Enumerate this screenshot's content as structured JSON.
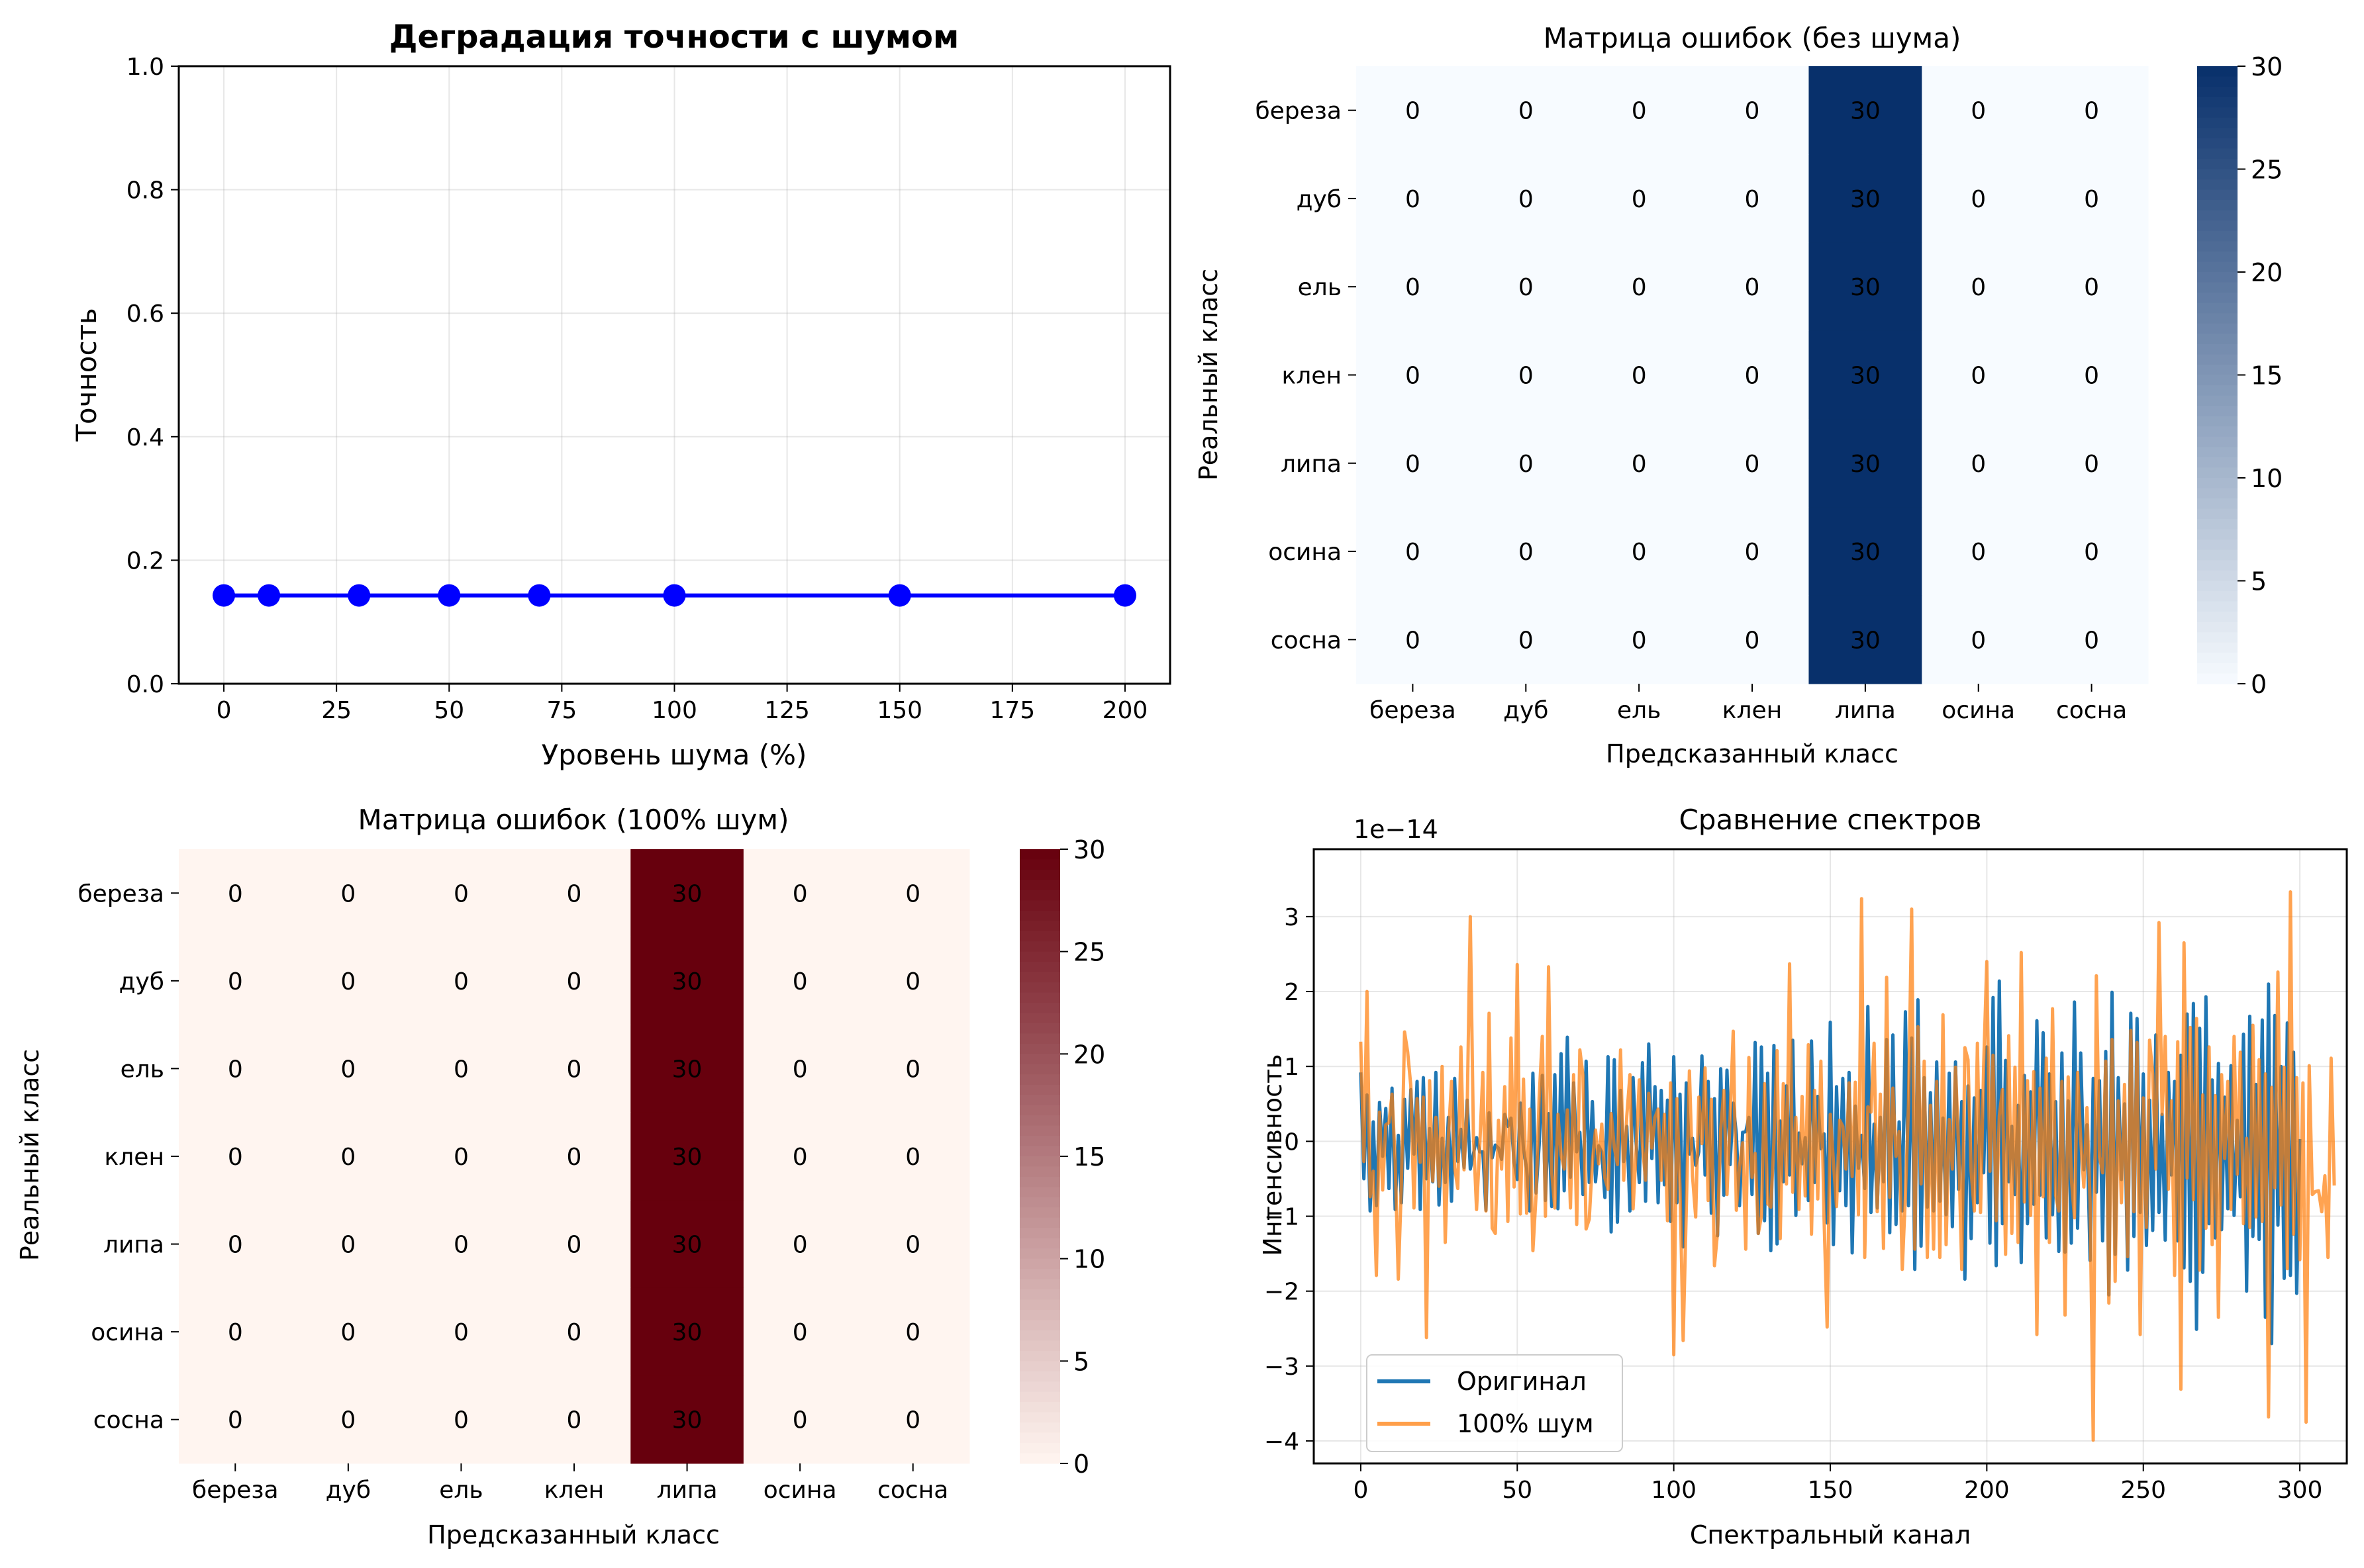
{
  "chart_data": [
    {
      "type": "line",
      "title": "Деградация точности с шумом",
      "xlabel": "Уровень шума (%)",
      "ylabel": "Точность",
      "x": [
        0,
        10,
        30,
        50,
        70,
        100,
        150,
        200
      ],
      "series": [
        {
          "values": [
            0.143,
            0.143,
            0.143,
            0.143,
            0.143,
            0.143,
            0.143,
            0.143
          ],
          "color": "#0000ff"
        }
      ],
      "xlim": [
        -10,
        210
      ],
      "ylim": [
        0,
        1
      ],
      "xticks": [
        0,
        25,
        50,
        75,
        100,
        125,
        150,
        175,
        200
      ],
      "yticks": [
        "0.0",
        "0.2",
        "0.4",
        "0.6",
        "0.8",
        "1.0"
      ],
      "grid": true
    },
    {
      "type": "heatmap",
      "title": "Матрица ошибок (без шума)",
      "xlabel": "Предсказанный класс",
      "ylabel": "Реальный класс",
      "labels": [
        "береза",
        "дуб",
        "ель",
        "клен",
        "липа",
        "осина",
        "сосна"
      ],
      "matrix": [
        [
          0,
          0,
          0,
          0,
          30,
          0,
          0
        ],
        [
          0,
          0,
          0,
          0,
          30,
          0,
          0
        ],
        [
          0,
          0,
          0,
          0,
          30,
          0,
          0
        ],
        [
          0,
          0,
          0,
          0,
          30,
          0,
          0
        ],
        [
          0,
          0,
          0,
          0,
          30,
          0,
          0
        ],
        [
          0,
          0,
          0,
          0,
          30,
          0,
          0
        ],
        [
          0,
          0,
          0,
          0,
          30,
          0,
          0
        ]
      ],
      "colorbar_ticks": [
        0,
        5,
        10,
        15,
        20,
        25,
        30
      ],
      "vmin": 0,
      "vmax": 30,
      "colormap": "Blues",
      "low_color": "#f7fbff",
      "high_color": "#08306b"
    },
    {
      "type": "heatmap",
      "title": "Матрица ошибок (100% шум)",
      "xlabel": "Предсказанный класс",
      "ylabel": "Реальный класс",
      "labels": [
        "береза",
        "дуб",
        "ель",
        "клен",
        "липа",
        "осина",
        "сосна"
      ],
      "matrix": [
        [
          0,
          0,
          0,
          0,
          30,
          0,
          0
        ],
        [
          0,
          0,
          0,
          0,
          30,
          0,
          0
        ],
        [
          0,
          0,
          0,
          0,
          30,
          0,
          0
        ],
        [
          0,
          0,
          0,
          0,
          30,
          0,
          0
        ],
        [
          0,
          0,
          0,
          0,
          30,
          0,
          0
        ],
        [
          0,
          0,
          0,
          0,
          30,
          0,
          0
        ],
        [
          0,
          0,
          0,
          0,
          30,
          0,
          0
        ]
      ],
      "colorbar_ticks": [
        0,
        5,
        10,
        15,
        20,
        25,
        30
      ],
      "vmin": 0,
      "vmax": 30,
      "colormap": "Reds",
      "low_color": "#fff5f0",
      "high_color": "#67000d"
    },
    {
      "type": "line",
      "title": "Сравнение спектров",
      "xlabel": "Спектральный канал",
      "ylabel": "Интенсивность",
      "offset_text": "1e−14",
      "xlim": [
        -15,
        315
      ],
      "ylim": [
        -4.3,
        3.9
      ],
      "xticks": [
        0,
        50,
        100,
        150,
        200,
        250,
        300
      ],
      "yticks": [
        -4,
        -3,
        -2,
        -1,
        0,
        1,
        2,
        3
      ],
      "legend": "lower-left",
      "grid": true,
      "series": [
        {
          "name": "Оригинал",
          "color": "#1f77b4",
          "values": [
            0.92,
            -0.5,
            0.62,
            -0.93,
            0.26,
            -0.86,
            0.52,
            -0.2,
            0.44,
            -0.63,
            0.71,
            -0.91,
            0.08,
            -0.82,
            0.56,
            -0.36,
            0.69,
            -0.17,
            0.8,
            -0.91,
            0.85,
            -0.5,
            0.17,
            -0.54,
            0.92,
            -0.85,
            0.04,
            -0.55,
            0.32,
            -0.8,
            0.84,
            -0.27,
            0.16,
            -0.35,
            0.55,
            -0.37,
            -0.17,
            0.05,
            -0.14,
            -0.14,
            -0.92,
            0.38,
            -0.22,
            -0.05,
            -0.09,
            -0.24,
            0.36,
            0.2,
            0.31,
            -0.28,
            -0.51,
            0.51,
            -0.11,
            -0.36,
            -0.93,
            0.91,
            -0.69,
            -0.05,
            0.88,
            -0.79,
            0.37,
            -0.87,
            0.89,
            -0.9,
            1.17,
            -0.66,
            1.39,
            -0.48,
            0.78,
            -0.14,
            0.12,
            -0.71,
            1.07,
            -0.55,
            0.53,
            -0.54,
            -0.06,
            -0.14,
            -0.75,
            1.13,
            -1.21,
            1.09,
            -1.08,
            0.68,
            -0.27,
            0.2,
            -0.93,
            0.85,
            -0.04,
            -0.55,
            1.05,
            -0.8,
            1.3,
            -0.23,
            0.73,
            -0.82,
            0.68,
            -0.58,
            0.55,
            -1.07,
            1.13,
            -0.82,
            0.63,
            -1.41,
            0.78,
            -0.17,
            0.04,
            -0.32,
            -0.14,
            1.14,
            -0.45,
            0.8,
            -0.96,
            0.57,
            -1.26,
            0.97,
            -0.72,
            0.95,
            -0.31,
            0.51,
            0.09,
            -0.86,
            0.12,
            0.13,
            0.32,
            -0.71,
            1.32,
            -1.23,
            1.26,
            -1.06,
            0.91,
            -1.46,
            1.28,
            -1.37,
            0.27,
            -0.54,
            0.74,
            -0.45,
            1.35,
            -0.99,
            0.11,
            -0.3,
            0.05,
            -0.79,
            1.34,
            -0.55,
            0.6,
            -0.1,
            0.1,
            -1.09,
            1.59,
            -1.38,
            0.73,
            -0.66,
            0.84,
            -0.86,
            0.92,
            -1.49,
            0.47,
            -0.36,
            0.08,
            -0.63,
            1.8,
            -0.95,
            0.23,
            -0.89,
            0.32,
            -0.54,
            1.36,
            -1.22,
            1.42,
            -1.11,
            0.26,
            -0.93,
            1.73,
            -0.86,
            1.38,
            -1.71,
            1.89,
            -1.4,
            0.85,
            -0.88,
            0.65,
            -0.93,
            1.06,
            -0.8,
            0.31,
            -0.98,
            0.91,
            -1.14,
            1.06,
            -0.64,
            0.53,
            -1.84,
            0.74,
            -1.3,
            0.58,
            -0.82,
            0.68,
            -0.42,
            1.26,
            -1.36,
            1.92,
            -1.66,
            2.14,
            -1.1,
            1.08,
            -0.54,
            0.2,
            -0.71,
            0.48,
            -1.62,
            0.88,
            -1.1,
            0.66,
            -0.84,
            1.61,
            -0.72,
            1.45,
            -1.29,
            0.9,
            -0.98,
            0.53,
            -1.47,
            1.18,
            -1.48,
            0.54,
            -1.36,
            1.86,
            -1.16,
            1.18,
            -0.38,
            0.22,
            -1.59,
            0.84,
            -0.68,
            0.81,
            -1.33,
            1.2,
            -2.05,
            1.99,
            -1.51,
            0.85,
            -0.51,
            0.5,
            -1.72,
            1.71,
            -1.27,
            1.64,
            -0.95,
            0.9,
            -1.39,
            0.55,
            -1.19,
            1.42,
            -0.95,
            0.36,
            -1.32,
            0.92,
            -0.45,
            0.8,
            -1.33,
            1.15,
            -1.69,
            1.7,
            -1.87,
            1.84,
            -2.51,
            1.51,
            -1.75,
            1.93,
            -1.1,
            0.82,
            -1.29,
            1.04,
            -1.18,
            0.59,
            -0.9,
            1.01,
            -0.99,
            0.28,
            -0.74,
            1.43,
            -2.0,
            1.67,
            -1.27,
            0.76,
            -1.31,
            1.62,
            -2.35,
            2.1,
            -2.7,
            1.68,
            -1.12,
            1.0,
            -1.83,
            1.58,
            -1.79,
            1.19,
            -2.03,
            0.03
          ]
        },
        {
          "name": "100% шум",
          "color": "#ff7f0e",
          "values": [
            1.33,
            -0.27,
            2.0,
            -0.74,
            -0.4,
            -1.79,
            0.39,
            -0.65,
            0.22,
            0.25,
            0.63,
            -0.26,
            -1.84,
            -0.56,
            1.46,
            1.19,
            0.74,
            -0.89,
            0.57,
            -0.28,
            0.59,
            -2.62,
            0.81,
            -0.53,
            0.32,
            -0.6,
            1.0,
            -1.35,
            0.06,
            0.8,
            -0.35,
            -0.63,
            1.26,
            -0.38,
            0.41,
            3.0,
            0.07,
            -0.91,
            -0.08,
            0.92,
            -0.93,
            1.71,
            -1.16,
            -1.23,
            0.28,
            -0.37,
            0.73,
            -1.07,
            1.38,
            -0.61,
            2.36,
            -0.97,
            0.83,
            -0.96,
            0.43,
            -1.46,
            -0.73,
            0.58,
            1.4,
            -1.0,
            2.33,
            -0.41,
            -0.89,
            0.36,
            -0.18,
            -0.37,
            0.42,
            -0.89,
            0.89,
            -1.11,
            1.22,
            0.88,
            -1.17,
            -1.04,
            -0.27,
            0.15,
            -0.3,
            0.23,
            -0.49,
            -0.64,
            0.37,
            -0.08,
            -0.31,
            1.22,
            -0.52,
            0.34,
            0.89,
            -0.9,
            -0.1,
            0.82,
            -0.06,
            -0.52,
            0.64,
            -0.09,
            0.32,
            0.43,
            -0.52,
            0.36,
            -1.06,
            0.78,
            -2.85,
            0.57,
            -0.63,
            -2.66,
            -0.91,
            0.94,
            -0.47,
            -1.01,
            0.59,
            -0.03,
            0.98,
            -0.79,
            0.56,
            -1.66,
            -1.21,
            0.16,
            0.68,
            -0.71,
            0.32,
            1.47,
            -0.92,
            -0.33,
            -0.02,
            -1.44,
            1.12,
            -0.48,
            -0.16,
            -1.23,
            -1.0,
            0.77,
            -0.83,
            -0.88,
            -0.01,
            1.21,
            -1.3,
            0.77,
            -0.57,
            2.37,
            -0.68,
            0.32,
            -0.91,
            0.6,
            -0.73,
            1.29,
            -1.24,
            0.68,
            -0.77,
            1.07,
            -1.01,
            -2.48,
            0.36,
            -0.27,
            -0.87,
            0.28,
            0.2,
            -0.37,
            0.78,
            -0.47,
            0.79,
            -0.98,
            3.24,
            -1.55,
            0.46,
            0.39,
            1.31,
            -0.94,
            0.63,
            -1.43,
            2.19,
            -0.75,
            0.71,
            -0.2,
            0.13,
            -1.71,
            -0.72,
            0.5,
            3.1,
            -1.44,
            1.53,
            -0.57,
            1.07,
            -1.55,
            0.48,
            -1.44,
            0.8,
            -1.55,
            1.69,
            -1.38,
            0.29,
            -0.37,
            0.99,
            -0.07,
            -1.71,
            1.25,
            1.09,
            -0.4,
            -0.93,
            1.31,
            -0.95,
            1.01,
            2.4,
            -0.4,
            1.15,
            -1.06,
            0.34,
            0.69,
            -1.51,
            1.41,
            -1.23,
            0.99,
            -1.35,
            2.52,
            -0.81,
            0.81,
            -0.99,
            0.93,
            -2.58,
            0.71,
            -0.74,
            1.11,
            -1.35,
            1.77,
            -0.72,
            -0.93,
            0.8,
            -2.32,
            0.86,
            -0.49,
            -1.02,
            0.92,
            0.02,
            -0.61,
            0.45,
            -0.81,
            -3.99,
            2.21,
            -0.21,
            -0.42,
            1.07,
            -2.16,
            1.36,
            -1.87,
            0.54,
            -0.82,
            0.76,
            -1.54,
            1.48,
            -0.94,
            1.32,
            -2.58,
            0.58,
            -1.15,
            1.35,
            0.9,
            -0.37,
            2.92,
            0.36,
            1.4,
            -0.64,
            0.54,
            -1.79,
            1.33,
            -3.31,
            2.65,
            -0.49,
            1.52,
            -0.78,
            1.64,
            -1.72,
            0.62,
            -1.16,
            1.26,
            -1.38,
            0.61,
            -2.35,
            0.89,
            -0.23,
            0.8,
            -0.91,
            1.4,
            -0.44,
            1.19,
            -1.1,
            0.04,
            -1.15,
            1.55,
            -1.01,
            1.09,
            -1.07,
            0.9,
            -3.68,
            0.72,
            -0.62,
            2.26,
            -0.85,
            0.99,
            -1.7,
            3.33,
            -1.24,
            0.85,
            -1.58,
            0.78,
            -3.75,
            1.01,
            -0.71,
            -0.67,
            -0.66,
            -0.94,
            -0.46,
            -1.55,
            1.11,
            -0.59
          ]
        }
      ]
    }
  ]
}
